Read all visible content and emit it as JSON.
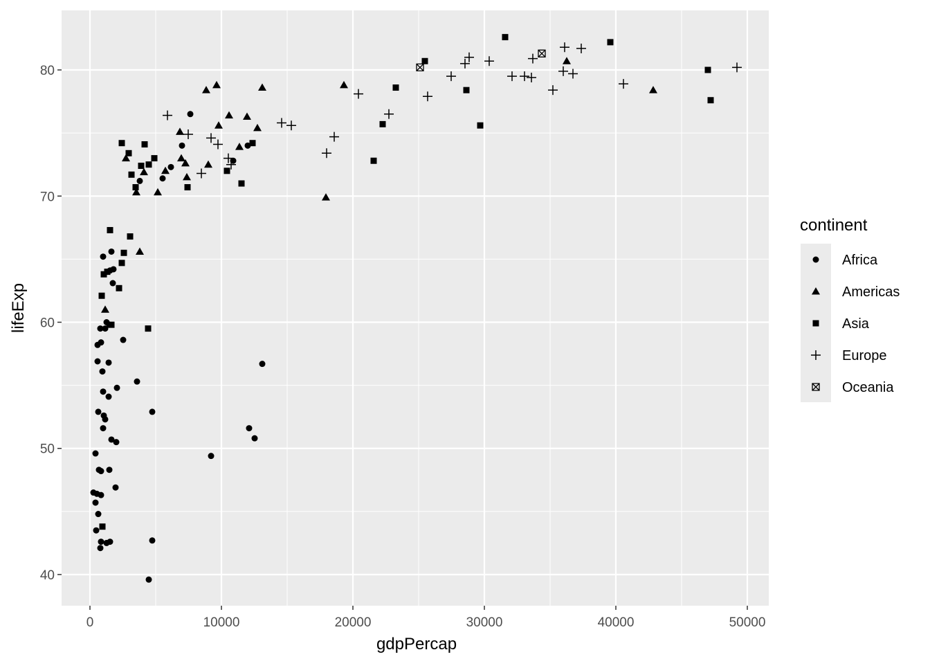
{
  "chart_data": {
    "type": "scatter",
    "x_label": "gdpPercap",
    "y_label": "lifeExp",
    "legend_title": "continent",
    "xlim": [
      -2158,
      51632
    ],
    "ylim": [
      37.53,
      84.72
    ],
    "xticks": [
      0,
      10000,
      20000,
      30000,
      40000,
      50000
    ],
    "yticks": [
      40,
      50,
      60,
      70,
      80
    ],
    "x_minor_breaks": [
      5000,
      15000,
      25000,
      35000,
      45000
    ],
    "y_minor_breaks": [
      45,
      55,
      65,
      75
    ],
    "grid": true,
    "legend_position": "right",
    "series": [
      {
        "name": "Africa",
        "shape": "circle",
        "color": "#000000",
        "x": [
          7632,
          7000,
          6158,
          5526,
          3789,
          12000,
          10895,
          1000,
          1526,
          1737,
          2526,
          1474,
          1263,
          579,
          842,
          789,
          1158,
          579,
          1421,
          947,
          13105,
          3579,
          2053,
          1000,
          1421,
          632,
          4737,
          1053,
          1158,
          1000,
          12105,
          12526,
          1632,
          2000,
          421,
          9211,
          684,
          842,
          1474,
          1947,
          263,
          526,
          842,
          421,
          632,
          474,
          842,
          1263,
          1526,
          4737,
          789,
          4474,
          1789,
          1632
        ],
        "y": [
          76.5,
          74.0,
          72.3,
          71.4,
          71.2,
          74.0,
          72.8,
          65.2,
          64.1,
          63.1,
          58.6,
          59.8,
          60.0,
          58.2,
          58.4,
          59.5,
          59.5,
          56.9,
          56.8,
          56.1,
          56.7,
          55.3,
          54.8,
          54.5,
          54.1,
          52.9,
          52.9,
          52.6,
          52.3,
          51.6,
          51.6,
          50.8,
          50.7,
          50.5,
          49.6,
          49.4,
          48.3,
          48.2,
          48.3,
          46.9,
          46.5,
          46.4,
          46.3,
          45.7,
          44.8,
          43.5,
          42.6,
          42.5,
          42.6,
          42.7,
          42.1,
          39.6,
          64.2,
          65.6
        ]
      },
      {
        "name": "Americas",
        "shape": "triangle",
        "color": "#000000",
        "x": [
          8842,
          9632,
          13105,
          19316,
          36263,
          42842,
          6842,
          10579,
          9789,
          11947,
          12737,
          11368,
          4105,
          2737,
          6947,
          7263,
          5737,
          9000,
          7368,
          3526,
          5158,
          17947,
          3789,
          1158
        ],
        "y": [
          78.4,
          78.8,
          78.6,
          78.8,
          80.7,
          78.4,
          75.1,
          76.4,
          75.6,
          76.3,
          75.4,
          73.9,
          71.9,
          73.0,
          73.0,
          72.6,
          72.0,
          72.5,
          71.5,
          70.3,
          70.3,
          69.9,
          65.6,
          61.0
        ]
      },
      {
        "name": "Asia",
        "shape": "square",
        "color": "#000000",
        "x": [
          31579,
          39579,
          25474,
          47000,
          47211,
          28632,
          23263,
          29684,
          22263,
          21579,
          12368,
          11526,
          10421,
          2421,
          4158,
          2947,
          4895,
          4474,
          3895,
          3158,
          3474,
          7421,
          1526,
          3053,
          2579,
          2421,
          1316,
          1053,
          2211,
          895,
          1632,
          4421,
          947
        ],
        "y": [
          82.6,
          82.2,
          80.7,
          80.0,
          77.6,
          78.4,
          78.6,
          75.6,
          75.7,
          72.8,
          74.2,
          71.0,
          72.0,
          74.2,
          74.1,
          73.4,
          73.0,
          72.5,
          72.4,
          71.7,
          70.7,
          70.7,
          67.3,
          66.8,
          65.5,
          64.7,
          64.0,
          63.8,
          62.7,
          62.1,
          59.8,
          59.5,
          43.8
        ]
      },
      {
        "name": "Europe",
        "shape": "plus",
        "color": "#000000",
        "x": [
          49211,
          40579,
          36105,
          37368,
          36000,
          36737,
          35211,
          33684,
          33053,
          33579,
          32105,
          30368,
          28842,
          28526,
          27474,
          25684,
          22737,
          20421,
          18579,
          18000,
          15316,
          14579,
          9211,
          9737,
          10526,
          10737,
          8474,
          7474,
          5895
        ],
        "y": [
          80.2,
          78.9,
          81.8,
          81.7,
          79.9,
          79.7,
          78.4,
          80.9,
          79.5,
          79.4,
          79.5,
          80.7,
          81.0,
          80.5,
          79.5,
          77.9,
          76.5,
          78.1,
          74.7,
          73.4,
          75.6,
          75.8,
          74.6,
          74.1,
          73.0,
          72.5,
          71.8,
          74.9,
          76.4
        ]
      },
      {
        "name": "Oceania",
        "shape": "square-cross",
        "color": "#000000",
        "x": [
          34368,
          25105
        ],
        "y": [
          81.3,
          80.2
        ]
      }
    ]
  }
}
